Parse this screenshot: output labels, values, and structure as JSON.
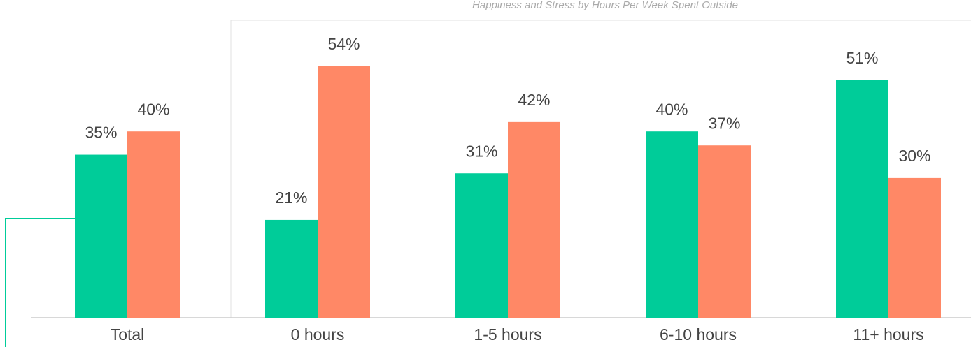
{
  "chart_data": {
    "type": "bar",
    "title": "Happiness and Stress by Hours Per Week Spent Outside",
    "categories": [
      "Total",
      "0 hours",
      "1-5 hours",
      "6-10 hours",
      "11+ hours"
    ],
    "series": [
      {
        "color": "#00cc99",
        "values": [
          35,
          21,
          31,
          40,
          51
        ],
        "value_labels": [
          "35%",
          "21%",
          "31%",
          "40%",
          "51%"
        ]
      },
      {
        "color": "#ff8866",
        "values": [
          40,
          54,
          42,
          37,
          30
        ],
        "value_labels": [
          "40%",
          "54%",
          "42%",
          "37%",
          "30%"
        ]
      }
    ]
  }
}
